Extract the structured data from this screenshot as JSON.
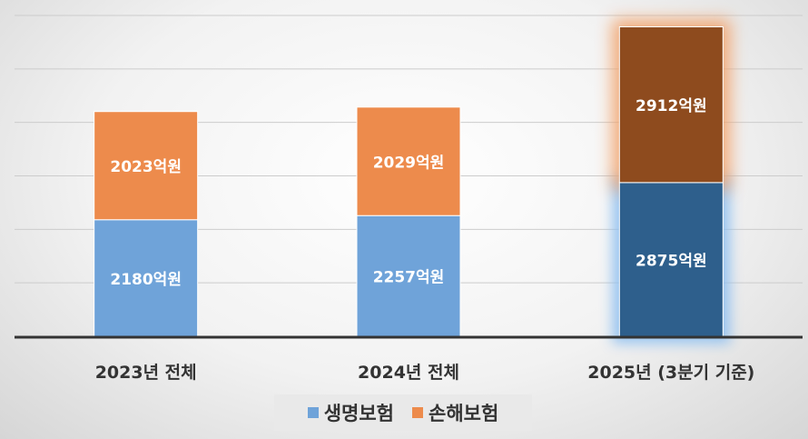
{
  "chart_data": {
    "type": "bar",
    "stacked": true,
    "categories": [
      "2023년 전체",
      "2024년 전체",
      "2025년 (3분기 기준)"
    ],
    "series": [
      {
        "name": "생명보험",
        "values": [
          2180,
          2257,
          2875
        ],
        "labels": [
          "2180억원",
          "2257억원",
          "2875억원"
        ],
        "color": "#6fa3d9"
      },
      {
        "name": "손해보험",
        "values": [
          2023,
          2029,
          2912
        ],
        "labels": [
          "2023억원",
          "2029억원",
          "2912억원"
        ],
        "color": "#ed8b4c"
      }
    ],
    "highlight": {
      "category_index": 2,
      "colors": [
        "#2e5f8c",
        "#8e4b1e"
      ]
    },
    "ylim": [
      0,
      6000
    ],
    "grid": true,
    "legend_position": "bottom"
  },
  "legend": {
    "life_label": "생명보험",
    "nonlife_label": "손해보험"
  }
}
